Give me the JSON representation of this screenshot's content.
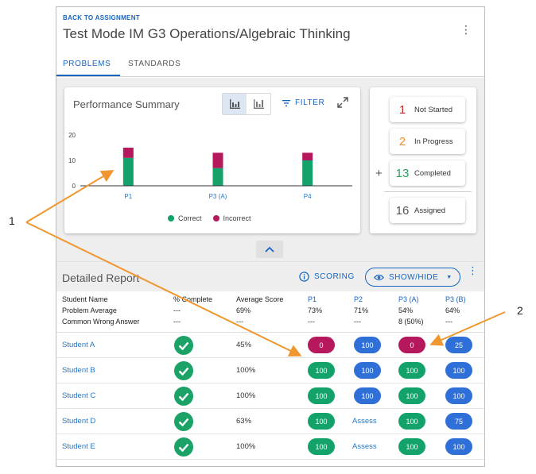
{
  "header": {
    "back_label": "BACK TO ASSIGNMENT",
    "title": "Test Mode IM G3 Operations/Algebraic Thinking",
    "tabs": [
      {
        "label": "PROBLEMS",
        "active": true
      },
      {
        "label": "STANDARDS",
        "active": false
      }
    ]
  },
  "performance": {
    "title": "Performance Summary",
    "filter_label": "FILTER"
  },
  "chart_data": {
    "type": "bar",
    "stacked": true,
    "categories": [
      "P1",
      "P3 (A)",
      "P4"
    ],
    "series": [
      {
        "name": "Correct",
        "color": "#12a26a",
        "values": [
          11,
          7,
          10
        ]
      },
      {
        "name": "Incorrect",
        "color": "#b5185c",
        "values": [
          4,
          6,
          3
        ]
      }
    ],
    "yticks": [
      0,
      10,
      20
    ],
    "ylim": [
      0,
      20
    ],
    "legend_position": "bottom",
    "grid": false
  },
  "status": {
    "items": [
      {
        "num": "1",
        "label": "Not Started",
        "color": "#c62828"
      },
      {
        "num": "2",
        "label": "In Progress",
        "color": "#ef8c2a"
      },
      {
        "num": "13",
        "label": "Completed",
        "color": "#2e9d5b"
      }
    ],
    "assigned": {
      "num": "16",
      "label": "Assigned",
      "color": "#555555"
    },
    "plus": "+"
  },
  "report": {
    "title": "Detailed Report",
    "scoring_label": "SCORING",
    "showhide_label": "SHOW/HIDE",
    "row_labels": [
      "Student Name",
      "Problem Average",
      "Common Wrong Answer"
    ],
    "columns": [
      {
        "header": "% Complete",
        "avg": "---",
        "cwa": "---"
      },
      {
        "header": "Average Score",
        "avg": "69%",
        "cwa": "---"
      },
      {
        "header": "P1",
        "avg": "73%",
        "cwa": "---"
      },
      {
        "header": "P2",
        "avg": "71%",
        "cwa": "---"
      },
      {
        "header": "P3 (A)",
        "avg": "54%",
        "cwa": "8 (50%)"
      },
      {
        "header": "P3 (B)",
        "avg": "64%",
        "cwa": "---"
      }
    ],
    "students": [
      {
        "name": "Student A",
        "avg": "45%",
        "scores": [
          {
            "text": "0",
            "kind": "red"
          },
          {
            "text": "100",
            "kind": "blue"
          },
          {
            "text": "0",
            "kind": "red"
          },
          {
            "text": "25",
            "kind": "blue"
          }
        ]
      },
      {
        "name": "Student B",
        "avg": "100%",
        "scores": [
          {
            "text": "100",
            "kind": "green"
          },
          {
            "text": "100",
            "kind": "blue"
          },
          {
            "text": "100",
            "kind": "green"
          },
          {
            "text": "100",
            "kind": "blue"
          }
        ]
      },
      {
        "name": "Student C",
        "avg": "100%",
        "scores": [
          {
            "text": "100",
            "kind": "green"
          },
          {
            "text": "100",
            "kind": "blue"
          },
          {
            "text": "100",
            "kind": "green"
          },
          {
            "text": "100",
            "kind": "blue"
          }
        ]
      },
      {
        "name": "Student D",
        "avg": "63%",
        "scores": [
          {
            "text": "100",
            "kind": "green"
          },
          {
            "text": "Assess",
            "kind": "link"
          },
          {
            "text": "100",
            "kind": "green"
          },
          {
            "text": "75",
            "kind": "blue"
          }
        ]
      },
      {
        "name": "Student E",
        "avg": "100%",
        "scores": [
          {
            "text": "100",
            "kind": "green"
          },
          {
            "text": "Assess",
            "kind": "link"
          },
          {
            "text": "100",
            "kind": "green"
          },
          {
            "text": "100",
            "kind": "blue"
          }
        ]
      }
    ]
  },
  "callouts": [
    "1",
    "2"
  ]
}
